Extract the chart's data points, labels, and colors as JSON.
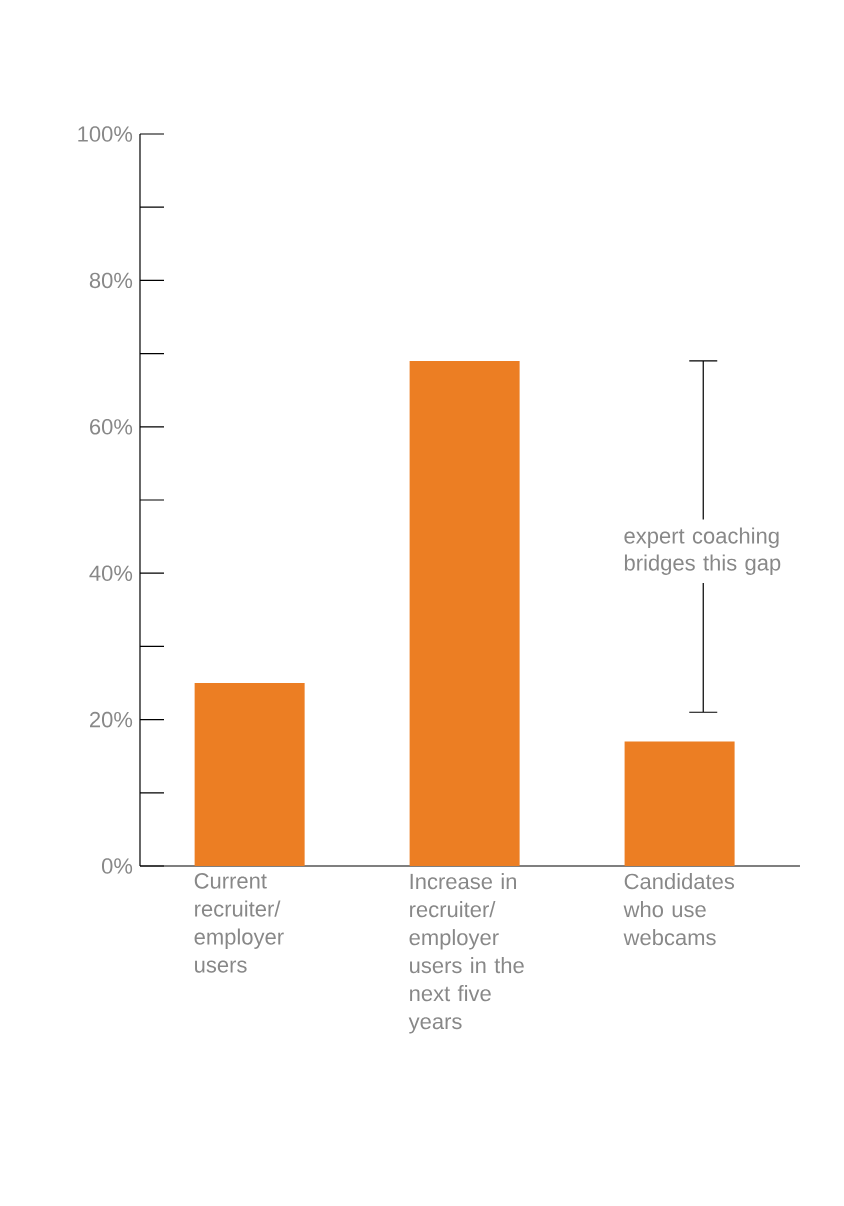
{
  "chart_data": {
    "type": "bar",
    "categories": [
      "Current recruiter/ employer users",
      "Increase in recruiter/ employer users in the next five years",
      "Candidates who use webcams"
    ],
    "values": [
      25,
      69,
      17
    ],
    "color": "#ec7e23",
    "ylim": [
      0,
      100
    ],
    "yticks": [
      {
        "value": 0,
        "label": "0%"
      },
      {
        "value": 10,
        "label": null
      },
      {
        "value": 20,
        "label": "20%"
      },
      {
        "value": 30,
        "label": null
      },
      {
        "value": 40,
        "label": "40%"
      },
      {
        "value": 50,
        "label": null
      },
      {
        "value": 60,
        "label": "60%"
      },
      {
        "value": 70,
        "label": null
      },
      {
        "value": 80,
        "label": "80%"
      },
      {
        "value": 90,
        "label": null
      },
      {
        "value": 100,
        "label": "100%"
      }
    ],
    "annotations": [
      "expert coaching bridges this gap"
    ],
    "grid": false
  }
}
